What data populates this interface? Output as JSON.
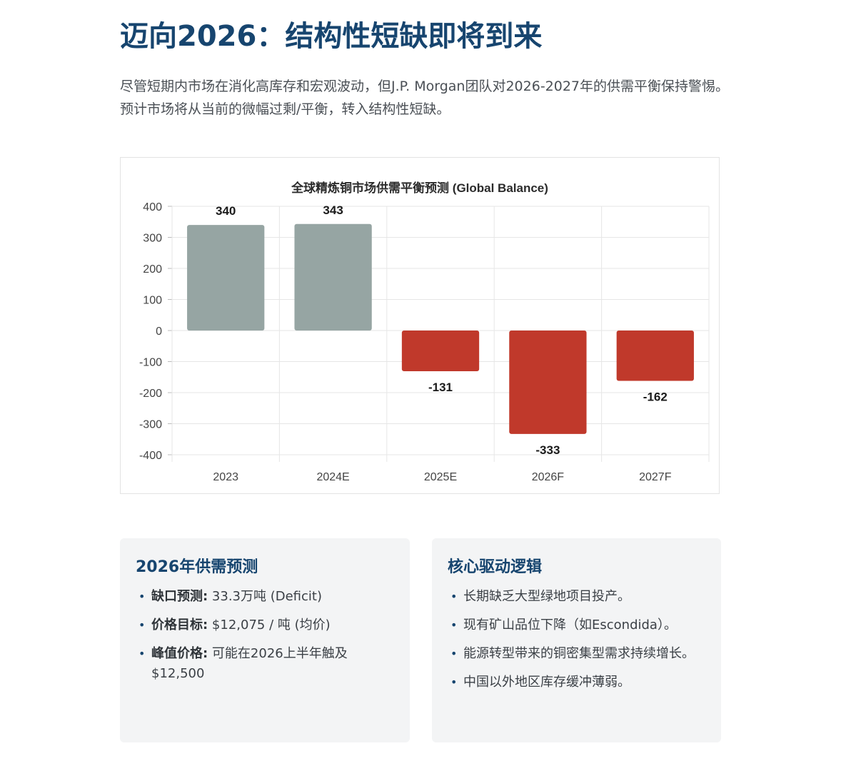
{
  "page": {
    "title": "迈向2026：结构性短缺即将到来",
    "intro": "尽管短期内市场在消化高库存和宏观波动，但J.P. Morgan团队对2026-2027年的供需平衡保持警惕。预计市场将从当前的微幅过剩/平衡，转入结构性短缺。"
  },
  "colors": {
    "title": "#17456f",
    "surplus_bar": "#96a5a3",
    "deficit_bar": "#c0392b",
    "card_bg": "#f3f4f5",
    "grid": "#e6e6e6"
  },
  "chart_data": {
    "type": "bar",
    "title": "全球精炼铜市场供需平衡预测 (Global Balance)",
    "categories": [
      "2023",
      "2024E",
      "2025E",
      "2026F",
      "2027F"
    ],
    "values": [
      340,
      343,
      -131,
      -333,
      -162
    ],
    "data_labels": [
      "340",
      "343",
      "-131",
      "-333",
      "-162"
    ],
    "xlabel": "",
    "ylabel": "",
    "ylim": [
      -400,
      400
    ],
    "yticks": [
      400,
      300,
      200,
      100,
      0,
      -100,
      -200,
      -300,
      -400
    ],
    "grid": true,
    "legend": "none"
  },
  "cards": {
    "left": {
      "title": "2026年供需预测",
      "items": [
        {
          "label": "缺口预测:",
          "text": " 33.3万吨 (Deficit)"
        },
        {
          "label": "价格目标:",
          "text": " $12,075 / 吨 (均价)"
        },
        {
          "label": "峰值价格:",
          "text": " 可能在2026上半年触及 $12,500"
        }
      ]
    },
    "right": {
      "title": "核心驱动逻辑",
      "items": [
        {
          "text": "长期缺乏大型绿地项目投产。"
        },
        {
          "text": "现有矿山品位下降（如Escondida）。"
        },
        {
          "text": "能源转型带来的铜密集型需求持续增长。"
        },
        {
          "text": "中国以外地区库存缓冲薄弱。"
        }
      ]
    }
  }
}
